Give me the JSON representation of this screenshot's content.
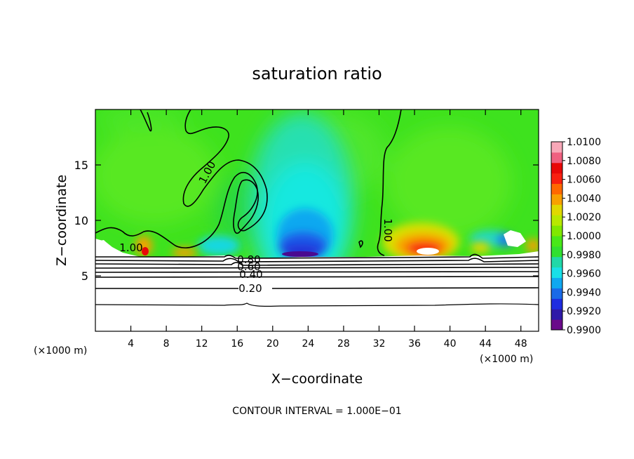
{
  "chart_data": {
    "type": "heatmap",
    "title": "saturation ratio",
    "xlabel": "X−coordinate",
    "ylabel": "Z−coordinate",
    "x_unit_left": "(×1000 m)",
    "x_unit_right": "(×1000 m)",
    "xlim": [
      0,
      50
    ],
    "ylim": [
      0,
      20
    ],
    "x_ticks": [
      4,
      8,
      12,
      16,
      20,
      24,
      28,
      32,
      36,
      40,
      44,
      48
    ],
    "y_ticks": [
      5,
      10,
      15
    ],
    "colorbar": {
      "ticks": [
        "1.0100",
        "1.0080",
        "1.0060",
        "1.0040",
        "1.0020",
        "1.0000",
        "0.9980",
        "0.9960",
        "0.9940",
        "0.9920",
        "0.9900"
      ],
      "range": [
        0.99,
        1.01
      ],
      "colors": [
        "#6a0a8a",
        "#2e1aa8",
        "#1e2ce0",
        "#1a6ae8",
        "#10a8f0",
        "#18e0e8",
        "#20d8a8",
        "#30e030",
        "#48e818",
        "#80e800",
        "#b8e800",
        "#e0d800",
        "#f8a000",
        "#ff6800",
        "#f82010",
        "#e80808",
        "#f06080",
        "#f8a8b8"
      ]
    },
    "contour_labels": [
      "1.00",
      "1.00",
      "1.00",
      "0.80",
      "0.60",
      "0.40",
      "0.20"
    ],
    "contour_interval_text": "CONTOUR INTERVAL =  1.000E−01"
  }
}
